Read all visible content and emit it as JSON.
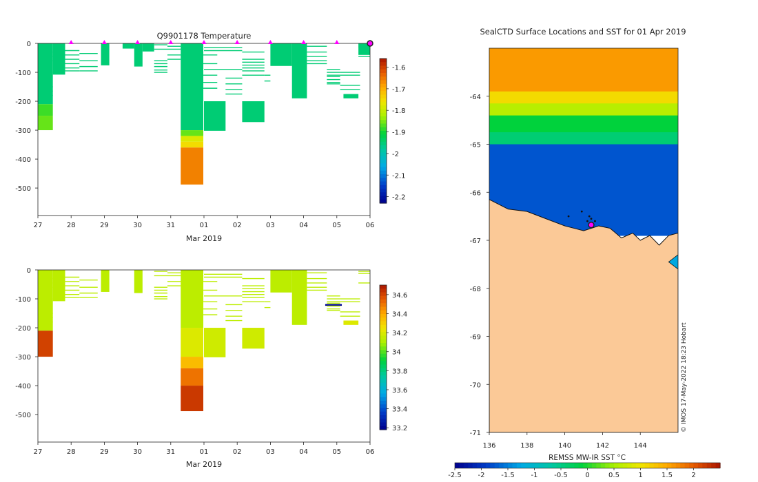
{
  "figure": {
    "footer_note": "© IMOS 17-May-2022 18:23 Hobart"
  },
  "chart_data": [
    {
      "id": "temperature",
      "type": "heatmap",
      "title": "Q9901178  Temperature",
      "xlabel": "Mar 2019",
      "ylabel": "",
      "x_ticks": [
        "27",
        "28",
        "29",
        "30",
        "31",
        "01",
        "02",
        "03",
        "04",
        "05",
        "06"
      ],
      "y_ticks": [
        0,
        -100,
        -200,
        -300,
        -400,
        -500
      ],
      "ylim": [
        -595,
        0
      ],
      "colorbar": {
        "min": -2.23,
        "max": -1.56,
        "ticks": [
          -1.6,
          -1.7,
          -1.8,
          -1.9,
          -2,
          -2.1,
          -2.2
        ]
      },
      "profile_markers_x": [
        1,
        2,
        3,
        4,
        5,
        6,
        7,
        8,
        9,
        10
      ],
      "columns": [
        {
          "x0": 0.0,
          "x1": 0.45,
          "segments": [
            {
              "d0": 0,
              "d1": 210,
              "v": -1.95
            },
            {
              "d0": 210,
              "d1": 250,
              "v": -1.88
            },
            {
              "d0": 250,
              "d1": 300,
              "v": -1.86
            }
          ]
        },
        {
          "x0": 0.45,
          "x1": 0.82,
          "segments": [
            {
              "d0": 0,
              "d1": 108,
              "v": -1.95
            }
          ]
        },
        {
          "x0": 1.9,
          "x1": 2.15,
          "segments": [
            {
              "d0": 0,
              "d1": 76,
              "v": -1.95
            }
          ]
        },
        {
          "x0": 2.55,
          "x1": 2.9,
          "segments": [
            {
              "d0": 0,
              "d1": 18,
              "v": -1.95
            }
          ]
        },
        {
          "x0": 2.9,
          "x1": 3.15,
          "segments": [
            {
              "d0": 0,
              "d1": 80,
              "v": -1.95
            }
          ]
        },
        {
          "x0": 3.15,
          "x1": 3.5,
          "segments": [
            {
              "d0": 0,
              "d1": 28,
              "v": -1.95
            }
          ]
        },
        {
          "x0": 4.3,
          "x1": 4.98,
          "segments": [
            {
              "d0": 0,
              "d1": 300,
              "v": -1.95
            },
            {
              "d0": 300,
              "d1": 320,
              "v": -1.86
            },
            {
              "d0": 320,
              "d1": 340,
              "v": -1.78
            },
            {
              "d0": 340,
              "d1": 360,
              "v": -1.75
            },
            {
              "d0": 360,
              "d1": 488,
              "v": -1.66
            }
          ]
        },
        {
          "x0": 5.0,
          "x1": 5.65,
          "segments": [
            {
              "d0": 200,
              "d1": 302,
              "v": -1.95
            }
          ]
        },
        {
          "x0": 6.15,
          "x1": 6.82,
          "segments": [
            {
              "d0": 200,
              "d1": 272,
              "v": -1.95
            }
          ]
        },
        {
          "x0": 7.0,
          "x1": 7.65,
          "segments": [
            {
              "d0": 0,
              "d1": 78,
              "v": -1.95
            }
          ]
        },
        {
          "x0": 7.65,
          "x1": 8.1,
          "segments": [
            {
              "d0": 0,
              "d1": 190,
              "v": -1.95
            }
          ]
        },
        {
          "x0": 9.2,
          "x1": 9.65,
          "segments": [
            {
              "d0": 175,
              "d1": 190,
              "v": -1.95
            }
          ]
        },
        {
          "x0": 9.65,
          "x1": 10.0,
          "segments": [
            {
              "d0": 0,
              "d1": 40,
              "v": -1.95
            }
          ]
        }
      ]
    },
    {
      "id": "salinity",
      "type": "heatmap",
      "title": "",
      "xlabel": "Mar 2019",
      "ylabel": "",
      "x_ticks": [
        "27",
        "28",
        "29",
        "30",
        "31",
        "01",
        "02",
        "03",
        "04",
        "05",
        "06"
      ],
      "y_ticks": [
        0,
        -100,
        -200,
        -300,
        -400,
        -500
      ],
      "ylim": [
        -595,
        0
      ],
      "colorbar": {
        "min": 33.18,
        "max": 34.7,
        "ticks": [
          34.6,
          34.4,
          34.2,
          34,
          33.8,
          33.6,
          33.4,
          33.2
        ]
      },
      "columns": [
        {
          "x0": 0.0,
          "x1": 0.45,
          "segments": [
            {
              "d0": 0,
              "d1": 210,
              "v": 34.13
            },
            {
              "d0": 210,
              "d1": 300,
              "v": 34.6
            }
          ]
        },
        {
          "x0": 0.45,
          "x1": 0.82,
          "segments": [
            {
              "d0": 0,
              "d1": 108,
              "v": 34.13
            }
          ]
        },
        {
          "x0": 1.9,
          "x1": 2.15,
          "segments": [
            {
              "d0": 0,
              "d1": 76,
              "v": 34.13
            }
          ]
        },
        {
          "x0": 2.9,
          "x1": 3.15,
          "segments": [
            {
              "d0": 0,
              "d1": 80,
              "v": 34.13
            }
          ]
        },
        {
          "x0": 4.3,
          "x1": 4.98,
          "segments": [
            {
              "d0": 0,
              "d1": 200,
              "v": 34.13
            },
            {
              "d0": 200,
              "d1": 300,
              "v": 34.2
            },
            {
              "d0": 300,
              "d1": 340,
              "v": 34.35
            },
            {
              "d0": 340,
              "d1": 400,
              "v": 34.5
            },
            {
              "d0": 400,
              "d1": 488,
              "v": 34.62
            }
          ]
        },
        {
          "x0": 5.0,
          "x1": 5.65,
          "segments": [
            {
              "d0": 200,
              "d1": 302,
              "v": 34.17
            }
          ]
        },
        {
          "x0": 6.15,
          "x1": 6.82,
          "segments": [
            {
              "d0": 200,
              "d1": 272,
              "v": 34.17
            }
          ]
        },
        {
          "x0": 7.0,
          "x1": 7.65,
          "segments": [
            {
              "d0": 0,
              "d1": 78,
              "v": 34.13
            }
          ]
        },
        {
          "x0": 7.65,
          "x1": 8.1,
          "segments": [
            {
              "d0": 0,
              "d1": 190,
              "v": 34.13
            }
          ]
        },
        {
          "x0": 9.2,
          "x1": 9.65,
          "segments": [
            {
              "d0": 175,
              "d1": 190,
              "v": 34.2
            }
          ]
        },
        {
          "x0": 8.65,
          "x1": 9.15,
          "segments": [
            {
              "d0": 118,
              "d1": 124,
              "v": 33.2
            }
          ]
        }
      ]
    },
    {
      "id": "sst_map",
      "type": "heatmap",
      "title": "SealCTD Surface Locations and SST for 01 Apr 2019",
      "xlabel": "",
      "ylabel": "",
      "x_ticks": [
        136,
        138,
        140,
        142,
        144
      ],
      "y_ticks": [
        -64,
        -65,
        -66,
        -67,
        -68,
        -69,
        -70,
        -71
      ],
      "xlim": [
        136,
        146
      ],
      "ylim": [
        -71,
        -63
      ],
      "colorbar": {
        "label": "REMSS MW-IR SST °C",
        "min": -2.5,
        "max": 2.5,
        "ticks": [
          -2.5,
          -2,
          -1.5,
          -1,
          -0.5,
          0,
          0.5,
          1,
          1.5,
          2
        ]
      },
      "sst_bands": [
        {
          "lat_top": -63.0,
          "lat_bottom": -63.9,
          "v": 1.6
        },
        {
          "lat_top": -63.9,
          "lat_bottom": -64.15,
          "v": 1.1
        },
        {
          "lat_top": -64.15,
          "lat_bottom": -64.4,
          "v": 0.6
        },
        {
          "lat_top": -64.4,
          "lat_bottom": -64.75,
          "v": -0.1
        },
        {
          "lat_top": -64.75,
          "lat_bottom": -65.0,
          "v": -0.4
        },
        {
          "lat_top": -65.0,
          "lat_bottom": -66.9,
          "v": -1.75
        }
      ],
      "coastline": [
        [
          136,
          -66.15
        ],
        [
          137,
          -66.35
        ],
        [
          138,
          -66.4
        ],
        [
          139,
          -66.55
        ],
        [
          140,
          -66.7
        ],
        [
          140.5,
          -66.75
        ],
        [
          141,
          -66.8
        ],
        [
          141.8,
          -66.7
        ],
        [
          142.4,
          -66.75
        ],
        [
          143,
          -66.95
        ],
        [
          143.6,
          -66.85
        ],
        [
          144,
          -67.0
        ],
        [
          144.5,
          -66.9
        ],
        [
          145,
          -67.1
        ],
        [
          145.5,
          -66.9
        ],
        [
          146,
          -66.85
        ]
      ],
      "track_points": [
        [
          141.2,
          -66.6
        ],
        [
          141.4,
          -66.55
        ],
        [
          141.6,
          -66.6
        ],
        [
          140.2,
          -66.5
        ],
        [
          140.9,
          -66.4
        ],
        [
          141.3,
          -66.5
        ]
      ],
      "current_location": [
        141.4,
        -66.68
      ]
    }
  ]
}
